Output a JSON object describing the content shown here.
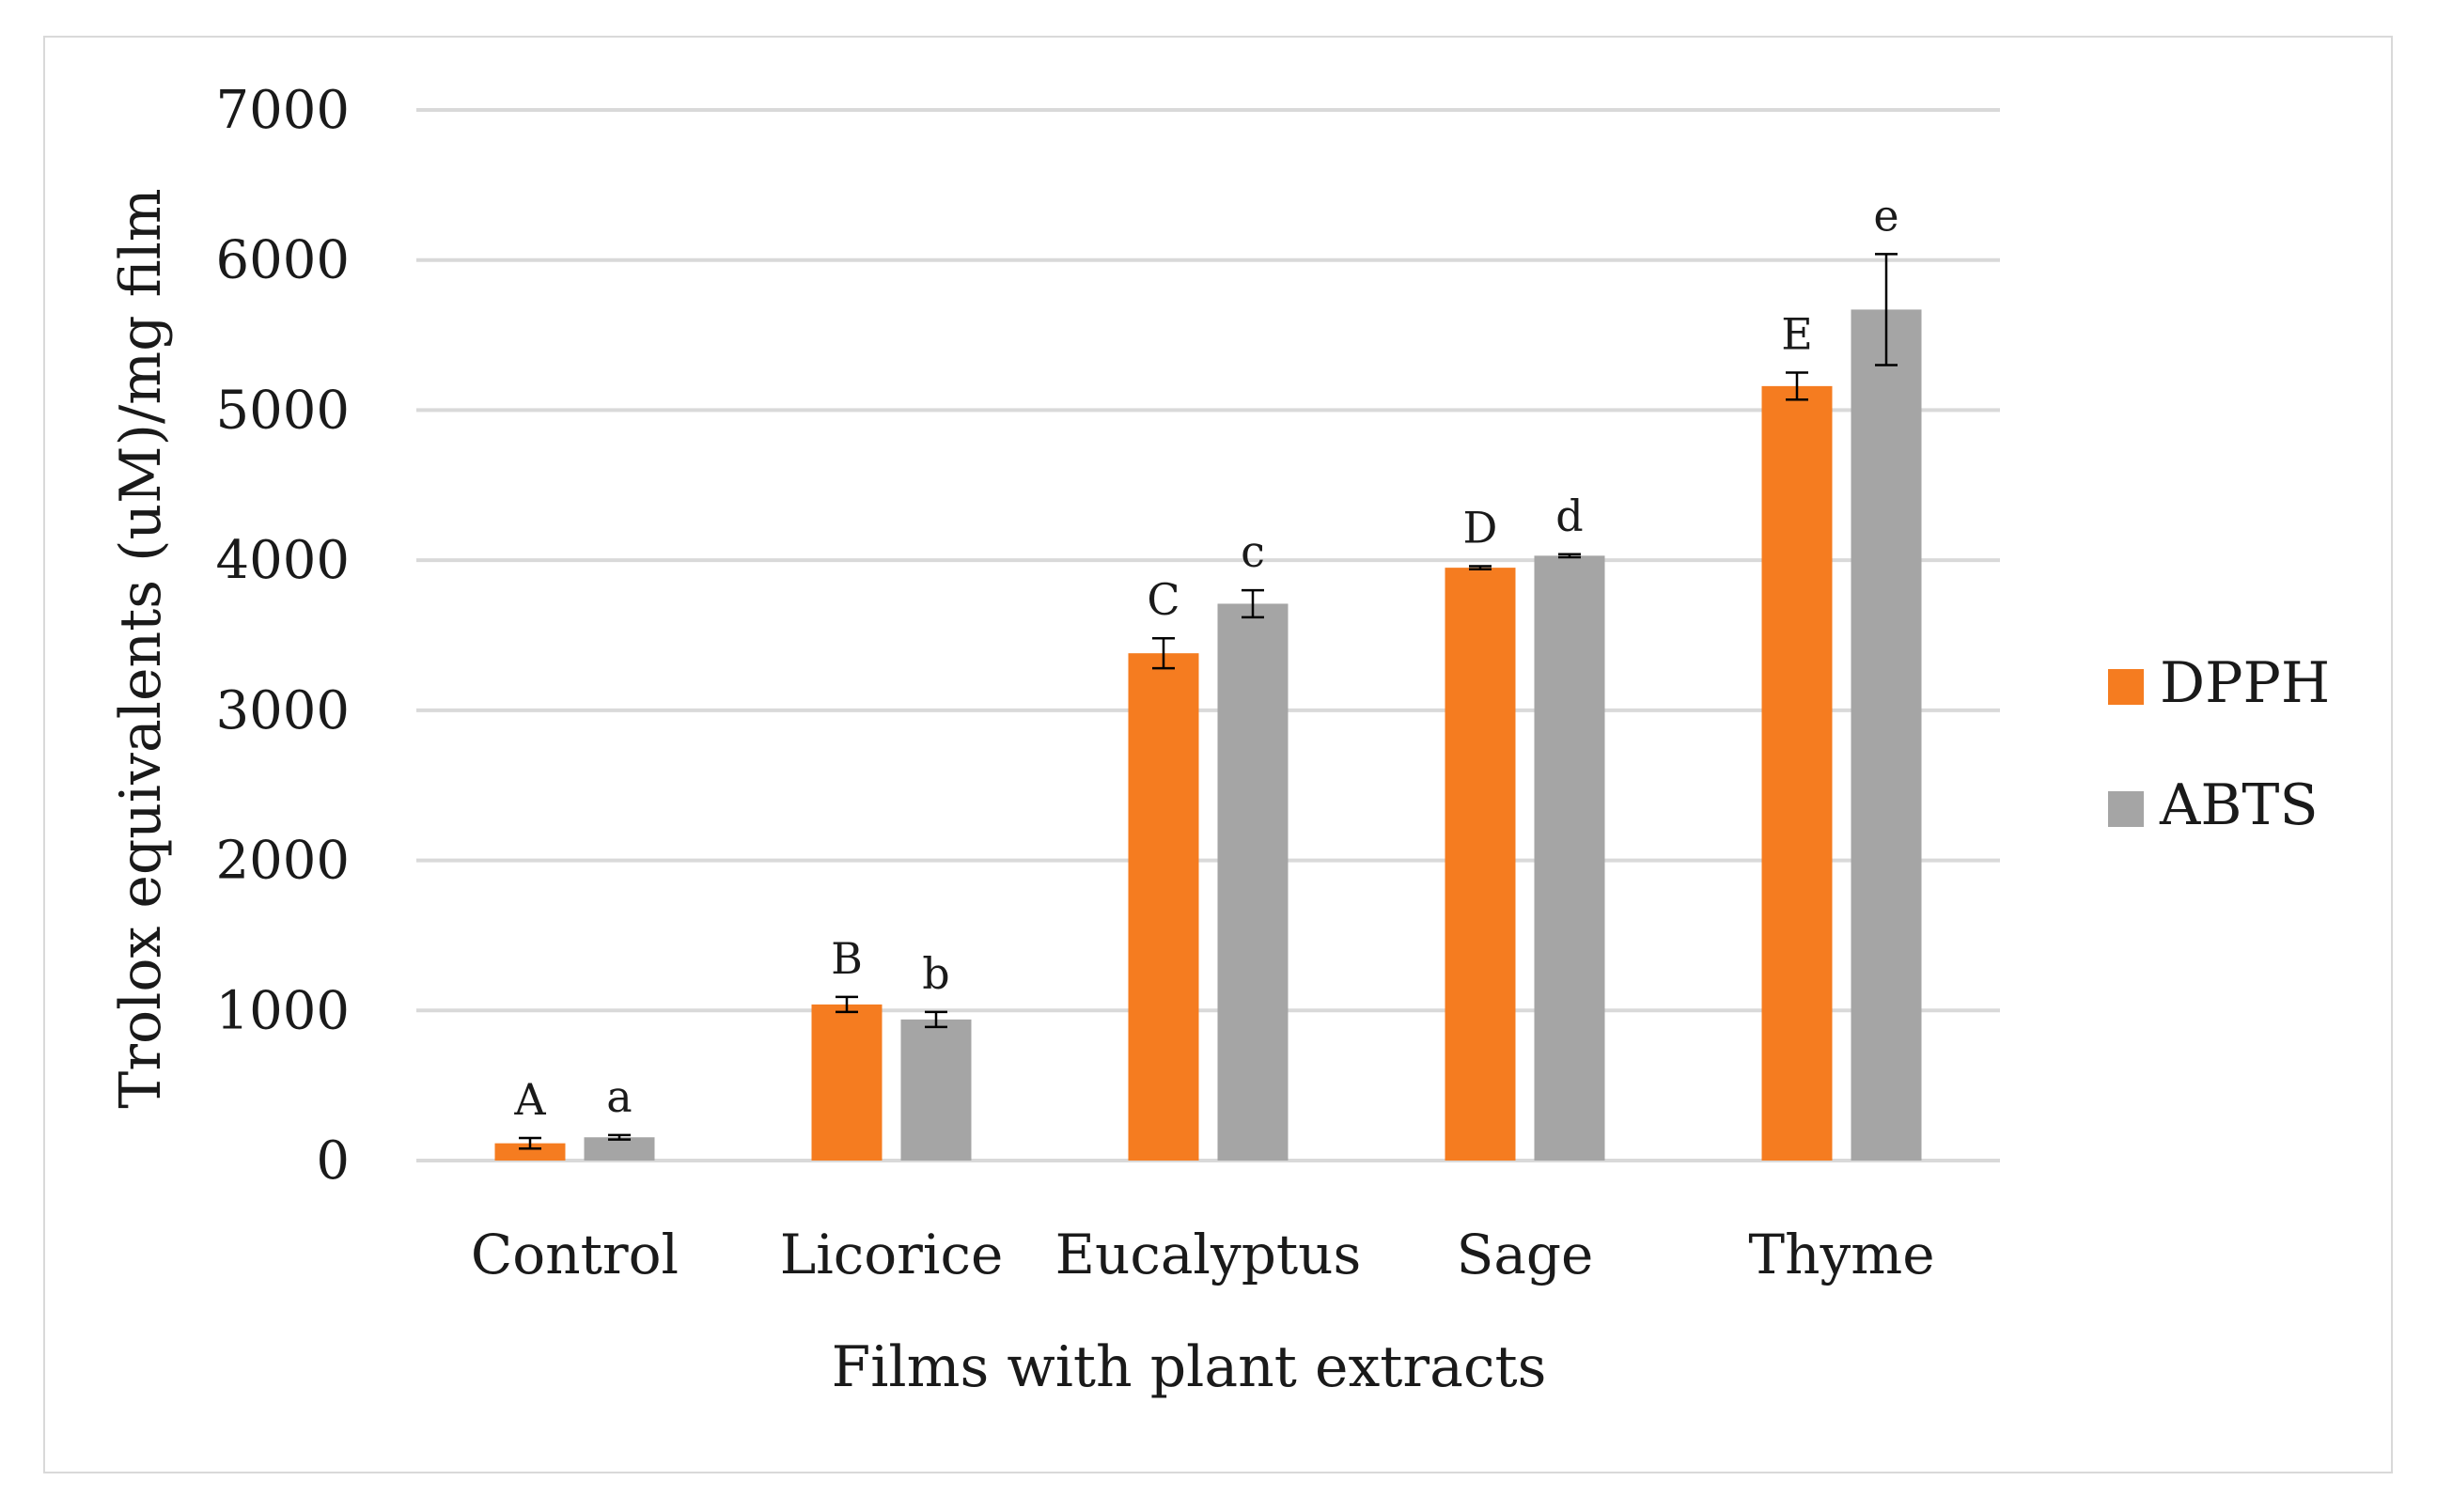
{
  "chart_data": {
    "type": "bar",
    "title": "",
    "xlabel": "Films with plant extracts",
    "ylabel": "Trolox equivalents (uM)/mg film",
    "ylim": [
      0,
      7000
    ],
    "yticks": [
      0,
      1000,
      2000,
      3000,
      4000,
      5000,
      6000,
      7000
    ],
    "grid": true,
    "legend_position": "right",
    "categories": [
      "Control",
      "Licorice",
      "Eucalyptus",
      "Sage",
      "Thyme"
    ],
    "series": [
      {
        "name": "DPPH",
        "color": "#f57c20",
        "values": [
          115,
          1040,
          3380,
          3950,
          5160
        ],
        "errors": [
          35,
          50,
          100,
          10,
          90
        ],
        "labels": [
          "A",
          "B",
          "C",
          "D",
          "E"
        ]
      },
      {
        "name": "ABTS",
        "color": "#a5a5a5",
        "values": [
          155,
          940,
          3710,
          4030,
          5670
        ],
        "errors": [
          15,
          50,
          90,
          10,
          370
        ],
        "labels": [
          "a",
          "b",
          "c",
          "d",
          "e"
        ]
      }
    ]
  }
}
